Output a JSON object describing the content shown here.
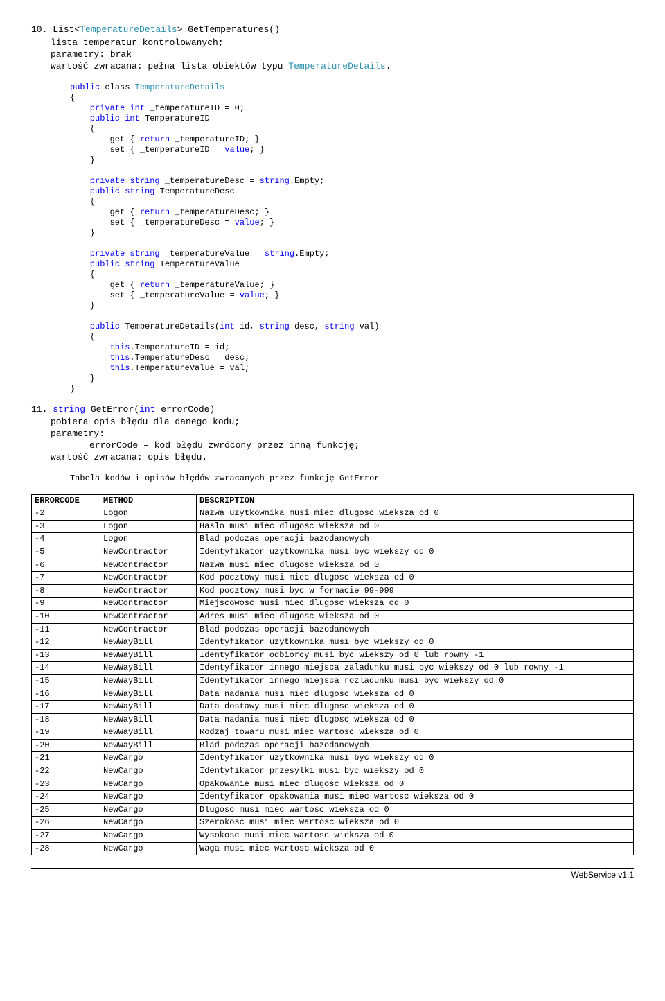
{
  "item10": {
    "number": "10.",
    "sig_pre": "List<",
    "sig_type": "TemperatureDetails",
    "sig_post": "> GetTemperatures()",
    "l1": "lista temperatur kontrolowanych;",
    "l2": "parametry: brak",
    "l3_a": "wartość zwracana: pełna lista obiektów typu ",
    "l3_b": "TemperatureDetails",
    "l3_c": "."
  },
  "code": {
    "c01a": "public",
    "c01b": " class ",
    "c01c": "TemperatureDetails",
    "c02": "{",
    "c03a": "    private",
    "c03b": " int",
    "c03c": " _temperatureID = 0;",
    "c04a": "    public",
    "c04b": " int",
    "c04c": " TemperatureID",
    "c05": "    {",
    "c06a": "        get { ",
    "c06b": "return",
    "c06c": " _temperatureID; }",
    "c07a": "        set { _temperatureID = ",
    "c07b": "value",
    "c07c": "; }",
    "c08": "    }",
    "c10a": "    private",
    "c10b": " string",
    "c10c": " _temperatureDesc = ",
    "c10d": "string",
    "c10e": ".Empty;",
    "c11a": "    public",
    "c11b": " string",
    "c11c": " TemperatureDesc",
    "c12": "    {",
    "c13a": "        get { ",
    "c13b": "return",
    "c13c": " _temperatureDesc; }",
    "c14a": "        set { _temperatureDesc = ",
    "c14b": "value",
    "c14c": "; }",
    "c15": "    }",
    "c17a": "    private",
    "c17b": " string",
    "c17c": " _temperatureValue = ",
    "c17d": "string",
    "c17e": ".Empty;",
    "c18a": "    public",
    "c18b": " string",
    "c18c": " TemperatureValue",
    "c19": "    {",
    "c20a": "        get { ",
    "c20b": "return",
    "c20c": " _temperatureValue; }",
    "c21a": "        set { _temperatureValue = ",
    "c21b": "value",
    "c21c": "; }",
    "c22": "    }",
    "c24a": "    public",
    "c24b": " TemperatureDetails(",
    "c24c": "int",
    "c24d": " id, ",
    "c24e": "string",
    "c24f": " desc, ",
    "c24g": "string",
    "c24h": " val)",
    "c25": "    {",
    "c26a": "        this",
    "c26b": ".TemperatureID = id;",
    "c27a": "        this",
    "c27b": ".TemperatureDesc = desc;",
    "c28a": "        this",
    "c28b": ".TemperatureValue = val;",
    "c29": "    }",
    "c30": "}"
  },
  "item11": {
    "number": "11.",
    "sig_a": "string",
    "sig_b": " GetError(",
    "sig_c": "int",
    "sig_d": " errorCode)",
    "l1": "pobiera opis błędu dla danego kodu;",
    "l2": "parametry:",
    "l3": "errorCode – kod błędu zwrócony przez inną funkcję;",
    "l4": "wartość zwracana: opis błędu."
  },
  "tableCaption": "Tabela kodów i opisów błędów zwracanych przez funkcję GetError",
  "headers": {
    "c1": "ERRORCODE",
    "c2": "METHOD",
    "c3": "DESCRIPTION"
  },
  "rows": [
    {
      "c": "-2",
      "m": "Logon",
      "d": "Nazwa uzytkownika musi miec dlugosc wieksza od 0"
    },
    {
      "c": "-3",
      "m": "Logon",
      "d": "Haslo musi miec dlugosc wieksza od 0"
    },
    {
      "c": "-4",
      "m": "Logon",
      "d": "Blad podczas operacji bazodanowych"
    },
    {
      "c": "-5",
      "m": "NewContractor",
      "d": "Identyfikator uzytkownika musi byc wiekszy od 0"
    },
    {
      "c": "-6",
      "m": "NewContractor",
      "d": "Nazwa musi miec dlugosc wieksza od 0"
    },
    {
      "c": "-7",
      "m": "NewContractor",
      "d": "Kod pocztowy musi miec dlugosc wieksza od 0"
    },
    {
      "c": "-8",
      "m": "NewContractor",
      "d": "Kod pocztowy musi byc w formacie 99-999"
    },
    {
      "c": "-9",
      "m": "NewContractor",
      "d": "Miejscowosc musi miec dlugosc wieksza od 0"
    },
    {
      "c": "-10",
      "m": "NewContractor",
      "d": "Adres musi miec dlugosc wieksza od 0"
    },
    {
      "c": "-11",
      "m": "NewContractor",
      "d": "Blad podczas operacji bazodanowych"
    },
    {
      "c": "-12",
      "m": "NewWayBill",
      "d": "Identyfikator uzytkownika musi byc wiekszy od 0"
    },
    {
      "c": "-13",
      "m": "NewWayBill",
      "d": "Identyfikator odbiorcy musi byc wiekszy od 0 lub rowny -1"
    },
    {
      "c": "-14",
      "m": "NewWayBill",
      "d": "Identyfikator innego miejsca zaladunku musi byc wiekszy od 0 lub rowny -1"
    },
    {
      "c": "-15",
      "m": "NewWayBill",
      "d": "Identyfikator innego miejsca rozladunku musi byc wiekszy od 0"
    },
    {
      "c": "-16",
      "m": "NewWayBill",
      "d": "Data nadania musi miec dlugosc wieksza od 0"
    },
    {
      "c": "-17",
      "m": "NewWayBill",
      "d": "Data dostawy musi miec dlugosc wieksza od 0"
    },
    {
      "c": "-18",
      "m": "NewWayBill",
      "d": "Data nadania musi miec dlugosc wieksza od 0"
    },
    {
      "c": "-19",
      "m": "NewWayBill",
      "d": "Rodzaj towaru musi miec wartosc wieksza od 0"
    },
    {
      "c": "-20",
      "m": "NewWayBill",
      "d": "Blad podczas operacji bazodanowych"
    },
    {
      "c": "-21",
      "m": "NewCargo",
      "d": "Identyfikator uzytkownika musi byc wiekszy od 0"
    },
    {
      "c": "-22",
      "m": "NewCargo",
      "d": "Identyfikator przesylki musi byc wiekszy od 0"
    },
    {
      "c": "-23",
      "m": "NewCargo",
      "d": "Opakowanie musi miec dlugosc wieksza od 0"
    },
    {
      "c": "-24",
      "m": "NewCargo",
      "d": "Identyfikator opakowania musi miec wartosc wieksza od 0"
    },
    {
      "c": "-25",
      "m": "NewCargo",
      "d": "Dlugosc musi miec wartosc wieksza od 0"
    },
    {
      "c": "-26",
      "m": "NewCargo",
      "d": "Szerokosc musi miec wartosc wieksza od 0"
    },
    {
      "c": "-27",
      "m": "NewCargo",
      "d": "Wysokosc musi miec wartosc wieksza od 0"
    },
    {
      "c": "-28",
      "m": "NewCargo",
      "d": "Waga musi miec wartosc wieksza od 0"
    }
  ],
  "footer": "WebService v1.1"
}
